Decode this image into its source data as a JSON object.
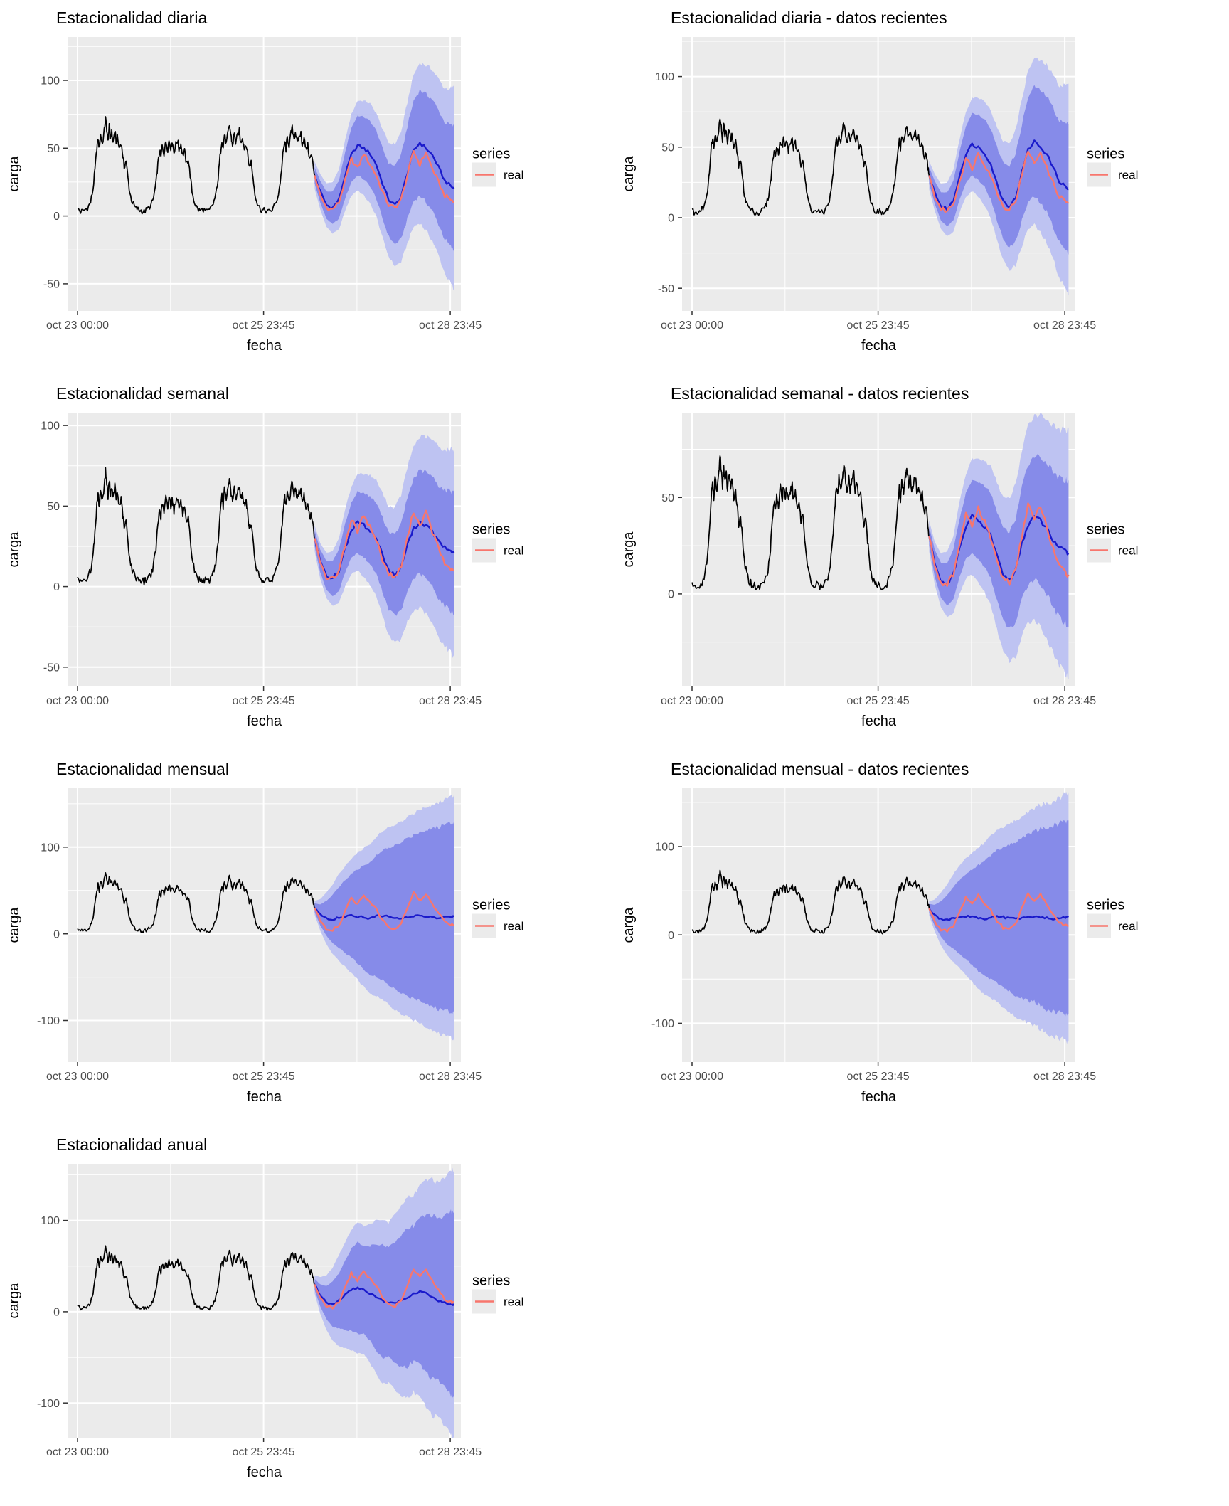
{
  "figure_title": "Prophet-style seasonality forecast panels",
  "chart_data": {
    "type": "line",
    "charts": [
      {
        "title": "Estacionalidad diaria",
        "profile": "daily",
        "ylim": [
          -70,
          132
        ],
        "y_ticks": [
          100,
          50,
          0,
          -50
        ]
      },
      {
        "title": "Estacionalidad diaria - datos recientes",
        "profile": "daily",
        "ylim": [
          -66,
          128
        ],
        "y_ticks": [
          100,
          50,
          0,
          -50
        ]
      },
      {
        "title": "Estacionalidad semanal",
        "profile": "weekly",
        "ylim": [
          -62,
          108
        ],
        "y_ticks": [
          100,
          50,
          0,
          -50
        ]
      },
      {
        "title": "Estacionalidad semanal - datos recientes",
        "profile": "weekly",
        "ylim": [
          -48,
          94
        ],
        "y_ticks": [
          50,
          0
        ]
      },
      {
        "title": "Estacionalidad mensual",
        "profile": "monthly",
        "ylim": [
          -148,
          168
        ],
        "y_ticks": [
          100,
          0,
          -100
        ]
      },
      {
        "title": "Estacionalidad mensual - datos recientes",
        "profile": "monthly",
        "ylim": [
          -144,
          166
        ],
        "y_ticks": [
          100,
          0,
          -100
        ]
      },
      {
        "title": "Estacionalidad anual",
        "profile": "annual",
        "ylim": [
          -138,
          162
        ],
        "y_ticks": [
          100,
          0,
          -100
        ]
      }
    ],
    "shared": {
      "xlabel": "fecha",
      "ylabel": "carga",
      "x_domain": [
        -0.16,
        6.16
      ],
      "x_ticks": [
        {
          "t": 0,
          "label": "oct 23 00:00"
        },
        {
          "t": 2.99,
          "label": "oct 25 23:45"
        },
        {
          "t": 5.99,
          "label": "oct 28 23:45"
        }
      ],
      "legend": {
        "title": "series",
        "entries": [
          {
            "label": "real",
            "color": "#F8766D"
          }
        ]
      },
      "colors": {
        "panel_bg": "#EBEBEB",
        "grid": "#FFFFFF",
        "hist_line": "#000000",
        "forecast_line": "#1A1ACB",
        "real_line": "#F8766D",
        "inner_band": "#7F85E8",
        "outer_band": "#BEC3F2",
        "axis_text": "#4D4D4D",
        "axis_title": "#000000",
        "tick_mark": "#333333",
        "legend_key_bg": "#EBEBEB",
        "title_color": "#000000"
      },
      "historical": [
        [
          0.0,
          6
        ],
        [
          0.05,
          3
        ],
        [
          0.1,
          4
        ],
        [
          0.16,
          6
        ],
        [
          0.21,
          10
        ],
        [
          0.25,
          20
        ],
        [
          0.28,
          34
        ],
        [
          0.31,
          50
        ],
        [
          0.33,
          57
        ],
        [
          0.35,
          50
        ],
        [
          0.37,
          60
        ],
        [
          0.4,
          53
        ],
        [
          0.43,
          63
        ],
        [
          0.45,
          72
        ],
        [
          0.47,
          64
        ],
        [
          0.49,
          55
        ],
        [
          0.51,
          66
        ],
        [
          0.53,
          58
        ],
        [
          0.55,
          62
        ],
        [
          0.57,
          54
        ],
        [
          0.6,
          63
        ],
        [
          0.62,
          55
        ],
        [
          0.64,
          58
        ],
        [
          0.67,
          50
        ],
        [
          0.7,
          54
        ],
        [
          0.73,
          44
        ],
        [
          0.75,
          36
        ],
        [
          0.78,
          41
        ],
        [
          0.81,
          28
        ],
        [
          0.84,
          17
        ],
        [
          0.88,
          10
        ],
        [
          0.93,
          6
        ],
        [
          0.97,
          5
        ],
        [
          1.02,
          4
        ],
        [
          1.07,
          3
        ],
        [
          1.12,
          5
        ],
        [
          1.18,
          8
        ],
        [
          1.22,
          13
        ],
        [
          1.26,
          24
        ],
        [
          1.29,
          38
        ],
        [
          1.32,
          48
        ],
        [
          1.34,
          43
        ],
        [
          1.36,
          52
        ],
        [
          1.39,
          46
        ],
        [
          1.42,
          55
        ],
        [
          1.45,
          49
        ],
        [
          1.47,
          56
        ],
        [
          1.5,
          50
        ],
        [
          1.52,
          55
        ],
        [
          1.55,
          47
        ],
        [
          1.58,
          53
        ],
        [
          1.61,
          56
        ],
        [
          1.63,
          49
        ],
        [
          1.66,
          53
        ],
        [
          1.69,
          45
        ],
        [
          1.72,
          48
        ],
        [
          1.75,
          38
        ],
        [
          1.78,
          42
        ],
        [
          1.81,
          30
        ],
        [
          1.84,
          18
        ],
        [
          1.88,
          10
        ],
        [
          1.93,
          5
        ],
        [
          1.97,
          4
        ],
        [
          2.02,
          5
        ],
        [
          2.07,
          3
        ],
        [
          2.12,
          4
        ],
        [
          2.18,
          9
        ],
        [
          2.22,
          15
        ],
        [
          2.26,
          28
        ],
        [
          2.29,
          44
        ],
        [
          2.32,
          56
        ],
        [
          2.34,
          50
        ],
        [
          2.36,
          60
        ],
        [
          2.39,
          53
        ],
        [
          2.42,
          62
        ],
        [
          2.44,
          67
        ],
        [
          2.47,
          58
        ],
        [
          2.49,
          52
        ],
        [
          2.52,
          61
        ],
        [
          2.54,
          54
        ],
        [
          2.57,
          59
        ],
        [
          2.6,
          63
        ],
        [
          2.62,
          54
        ],
        [
          2.65,
          58
        ],
        [
          2.68,
          50
        ],
        [
          2.71,
          53
        ],
        [
          2.74,
          43
        ],
        [
          2.76,
          36
        ],
        [
          2.79,
          40
        ],
        [
          2.82,
          28
        ],
        [
          2.85,
          17
        ],
        [
          2.89,
          9
        ],
        [
          2.94,
          5
        ],
        [
          2.98,
          4
        ],
        [
          3.03,
          4
        ],
        [
          3.08,
          3
        ],
        [
          3.13,
          5
        ],
        [
          3.18,
          9
        ],
        [
          3.23,
          16
        ],
        [
          3.27,
          30
        ],
        [
          3.3,
          45
        ],
        [
          3.33,
          55
        ],
        [
          3.35,
          49
        ],
        [
          3.37,
          58
        ],
        [
          3.4,
          52
        ],
        [
          3.43,
          61
        ],
        [
          3.45,
          65
        ],
        [
          3.48,
          57
        ],
        [
          3.5,
          62
        ],
        [
          3.53,
          54
        ],
        [
          3.56,
          58
        ],
        [
          3.59,
          61
        ],
        [
          3.61,
          53
        ],
        [
          3.64,
          57
        ],
        [
          3.67,
          49
        ],
        [
          3.7,
          52
        ],
        [
          3.73,
          42
        ],
        [
          3.76,
          45
        ],
        [
          3.79,
          36
        ],
        [
          3.81,
          30
        ]
      ],
      "forecast_x": [
        3.81,
        3.9,
        4.0,
        4.1,
        4.2,
        4.3,
        4.4,
        4.5,
        4.6,
        4.7,
        4.8,
        4.9,
        5.0,
        5.1,
        5.2,
        5.3,
        5.4,
        5.5,
        5.6,
        5.7,
        5.8,
        5.9,
        6.0,
        6.05
      ],
      "profiles": {
        "daily": {
          "mean": [
            30,
            18,
            8,
            6,
            12,
            30,
            45,
            52,
            50,
            46,
            38,
            24,
            12,
            8,
            14,
            32,
            48,
            54,
            50,
            45,
            36,
            26,
            22,
            20
          ],
          "real": [
            30,
            15,
            6,
            5,
            10,
            26,
            42,
            35,
            46,
            38,
            30,
            18,
            8,
            6,
            12,
            30,
            48,
            38,
            47,
            35,
            25,
            15,
            12,
            10
          ],
          "inner": [
            6,
            8,
            10,
            12,
            14,
            17,
            20,
            22,
            23,
            24,
            25,
            26,
            27,
            29,
            31,
            34,
            37,
            39,
            40,
            41,
            42,
            43,
            45,
            46
          ],
          "outer": [
            10,
            13,
            16,
            19,
            22,
            26,
            30,
            33,
            35,
            37,
            38,
            40,
            42,
            45,
            48,
            52,
            56,
            59,
            61,
            63,
            65,
            68,
            72,
            75
          ]
        },
        "weekly": {
          "mean": [
            30,
            16,
            7,
            5,
            10,
            24,
            35,
            40,
            38,
            35,
            30,
            20,
            10,
            7,
            12,
            26,
            36,
            40,
            38,
            34,
            28,
            24,
            22,
            21
          ],
          "real": [
            30,
            15,
            6,
            5,
            10,
            26,
            42,
            34,
            45,
            37,
            29,
            17,
            8,
            6,
            12,
            30,
            47,
            38,
            46,
            34,
            24,
            14,
            11,
            10
          ],
          "inner": [
            5,
            7,
            9,
            11,
            13,
            15,
            17,
            19,
            20,
            21,
            22,
            23,
            24,
            25,
            27,
            29,
            31,
            32,
            33,
            34,
            35,
            36,
            37,
            38
          ],
          "outer": [
            8,
            11,
            14,
            17,
            20,
            24,
            27,
            30,
            32,
            34,
            36,
            38,
            40,
            42,
            45,
            48,
            51,
            53,
            55,
            57,
            59,
            61,
            63,
            65
          ]
        },
        "monthly": {
          "mean": [
            30,
            22,
            18,
            17,
            19,
            20,
            21,
            20,
            19,
            18,
            20,
            21,
            20,
            19,
            18,
            19,
            20,
            21,
            20,
            19,
            18,
            19,
            20,
            20
          ],
          "real": [
            30,
            15,
            6,
            5,
            10,
            26,
            42,
            34,
            45,
            36,
            28,
            16,
            8,
            6,
            12,
            30,
            47,
            38,
            46,
            34,
            24,
            14,
            11,
            10
          ],
          "inner": [
            5,
            12,
            20,
            28,
            35,
            42,
            48,
            54,
            60,
            65,
            70,
            75,
            79,
            83,
            87,
            91,
            94,
            97,
            100,
            103,
            105,
            107,
            109,
            110
          ],
          "outer": [
            8,
            18,
            30,
            40,
            50,
            58,
            66,
            73,
            80,
            86,
            92,
            97,
            102,
            107,
            111,
            115,
            119,
            123,
            127,
            130,
            133,
            136,
            139,
            141
          ]
        },
        "annual": {
          "mean": [
            30,
            18,
            10,
            8,
            12,
            18,
            24,
            26,
            24,
            20,
            16,
            12,
            10,
            10,
            12,
            16,
            20,
            22,
            20,
            16,
            12,
            10,
            9,
            8
          ],
          "real": [
            30,
            15,
            6,
            5,
            10,
            26,
            42,
            34,
            45,
            36,
            28,
            16,
            8,
            6,
            12,
            30,
            47,
            38,
            46,
            34,
            24,
            14,
            11,
            10
          ],
          "inner": [
            6,
            12,
            18,
            25,
            30,
            38,
            45,
            50,
            48,
            52,
            58,
            62,
            60,
            66,
            72,
            76,
            74,
            80,
            86,
            90,
            88,
            94,
            100,
            102
          ],
          "outer": [
            10,
            20,
            30,
            40,
            50,
            58,
            66,
            72,
            70,
            76,
            84,
            90,
            88,
            96,
            104,
            110,
            108,
            116,
            124,
            130,
            128,
            136,
            144,
            148
          ]
        }
      }
    }
  }
}
